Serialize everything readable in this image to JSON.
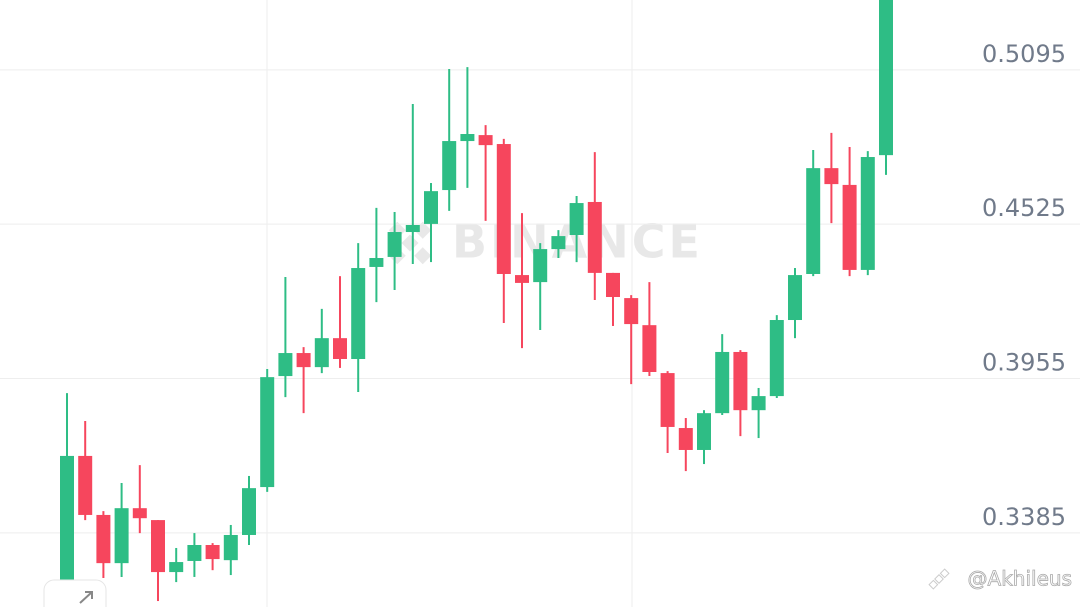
{
  "chart_data": {
    "type": "candlestick",
    "watermark": "BINANCE",
    "credit": "@Akhileus",
    "up_color": "#2ebd85",
    "down_color": "#f6465d",
    "grid": true,
    "ylim": [
      0.3111,
      0.5353
    ],
    "yticks": [
      0.5095,
      0.4525,
      0.3955,
      0.3385
    ],
    "series": {
      "open": [
        0.321,
        0.3669,
        0.3451,
        0.3273,
        0.3476,
        0.3432,
        0.324,
        0.3281,
        0.334,
        0.3284,
        0.3377,
        0.3554,
        0.3964,
        0.4049,
        0.3997,
        0.4104,
        0.4027,
        0.4367,
        0.4404,
        0.4496,
        0.4526,
        0.4651,
        0.4832,
        0.4854,
        0.4821,
        0.4337,
        0.4311,
        0.4433,
        0.4485,
        0.4607,
        0.4345,
        0.4252,
        0.4152,
        0.3975,
        0.3772,
        0.3691,
        0.3827,
        0.4053,
        0.3838,
        0.389,
        0.4171,
        0.4341,
        0.4732,
        0.467,
        0.4356,
        0.478
      ],
      "high": [
        0.3901,
        0.3798,
        0.3465,
        0.3569,
        0.3635,
        0.3432,
        0.3329,
        0.3384,
        0.3347,
        0.3414,
        0.3595,
        0.399,
        0.433,
        0.4071,
        0.4212,
        0.4333,
        0.4455,
        0.4585,
        0.457,
        0.4969,
        0.4677,
        0.5098,
        0.5105,
        0.4891,
        0.484,
        0.4566,
        0.4455,
        0.4503,
        0.4629,
        0.4791,
        0.4345,
        0.4263,
        0.4311,
        0.3982,
        0.3809,
        0.3838,
        0.4119,
        0.406,
        0.392,
        0.4189,
        0.4363,
        0.4799,
        0.4862,
        0.481,
        0.4795,
        0.5353
      ],
      "low": [
        0.3111,
        0.3432,
        0.3218,
        0.3222,
        0.3384,
        0.3133,
        0.3203,
        0.3222,
        0.3247,
        0.3229,
        0.334,
        0.3536,
        0.3886,
        0.3827,
        0.3975,
        0.3994,
        0.3905,
        0.4237,
        0.4282,
        0.4378,
        0.4385,
        0.4574,
        0.4659,
        0.4537,
        0.416,
        0.4067,
        0.4134,
        0.44,
        0.4385,
        0.4245,
        0.4149,
        0.3934,
        0.3964,
        0.368,
        0.3613,
        0.3639,
        0.382,
        0.3742,
        0.3735,
        0.3883,
        0.4104,
        0.4333,
        0.4529,
        0.4333,
        0.4337,
        0.4707
      ],
      "close": [
        0.3669,
        0.3451,
        0.3273,
        0.3476,
        0.3439,
        0.324,
        0.3277,
        0.334,
        0.3288,
        0.3377,
        0.355,
        0.396,
        0.4049,
        0.3997,
        0.4104,
        0.4027,
        0.4363,
        0.44,
        0.4496,
        0.4522,
        0.4647,
        0.4832,
        0.4858,
        0.4817,
        0.4341,
        0.4308,
        0.4433,
        0.4481,
        0.4603,
        0.4345,
        0.4256,
        0.4156,
        0.3979,
        0.3776,
        0.3691,
        0.3827,
        0.4053,
        0.3838,
        0.389,
        0.4171,
        0.4337,
        0.4732,
        0.4673,
        0.4356,
        0.4773,
        0.5353
      ]
    }
  }
}
